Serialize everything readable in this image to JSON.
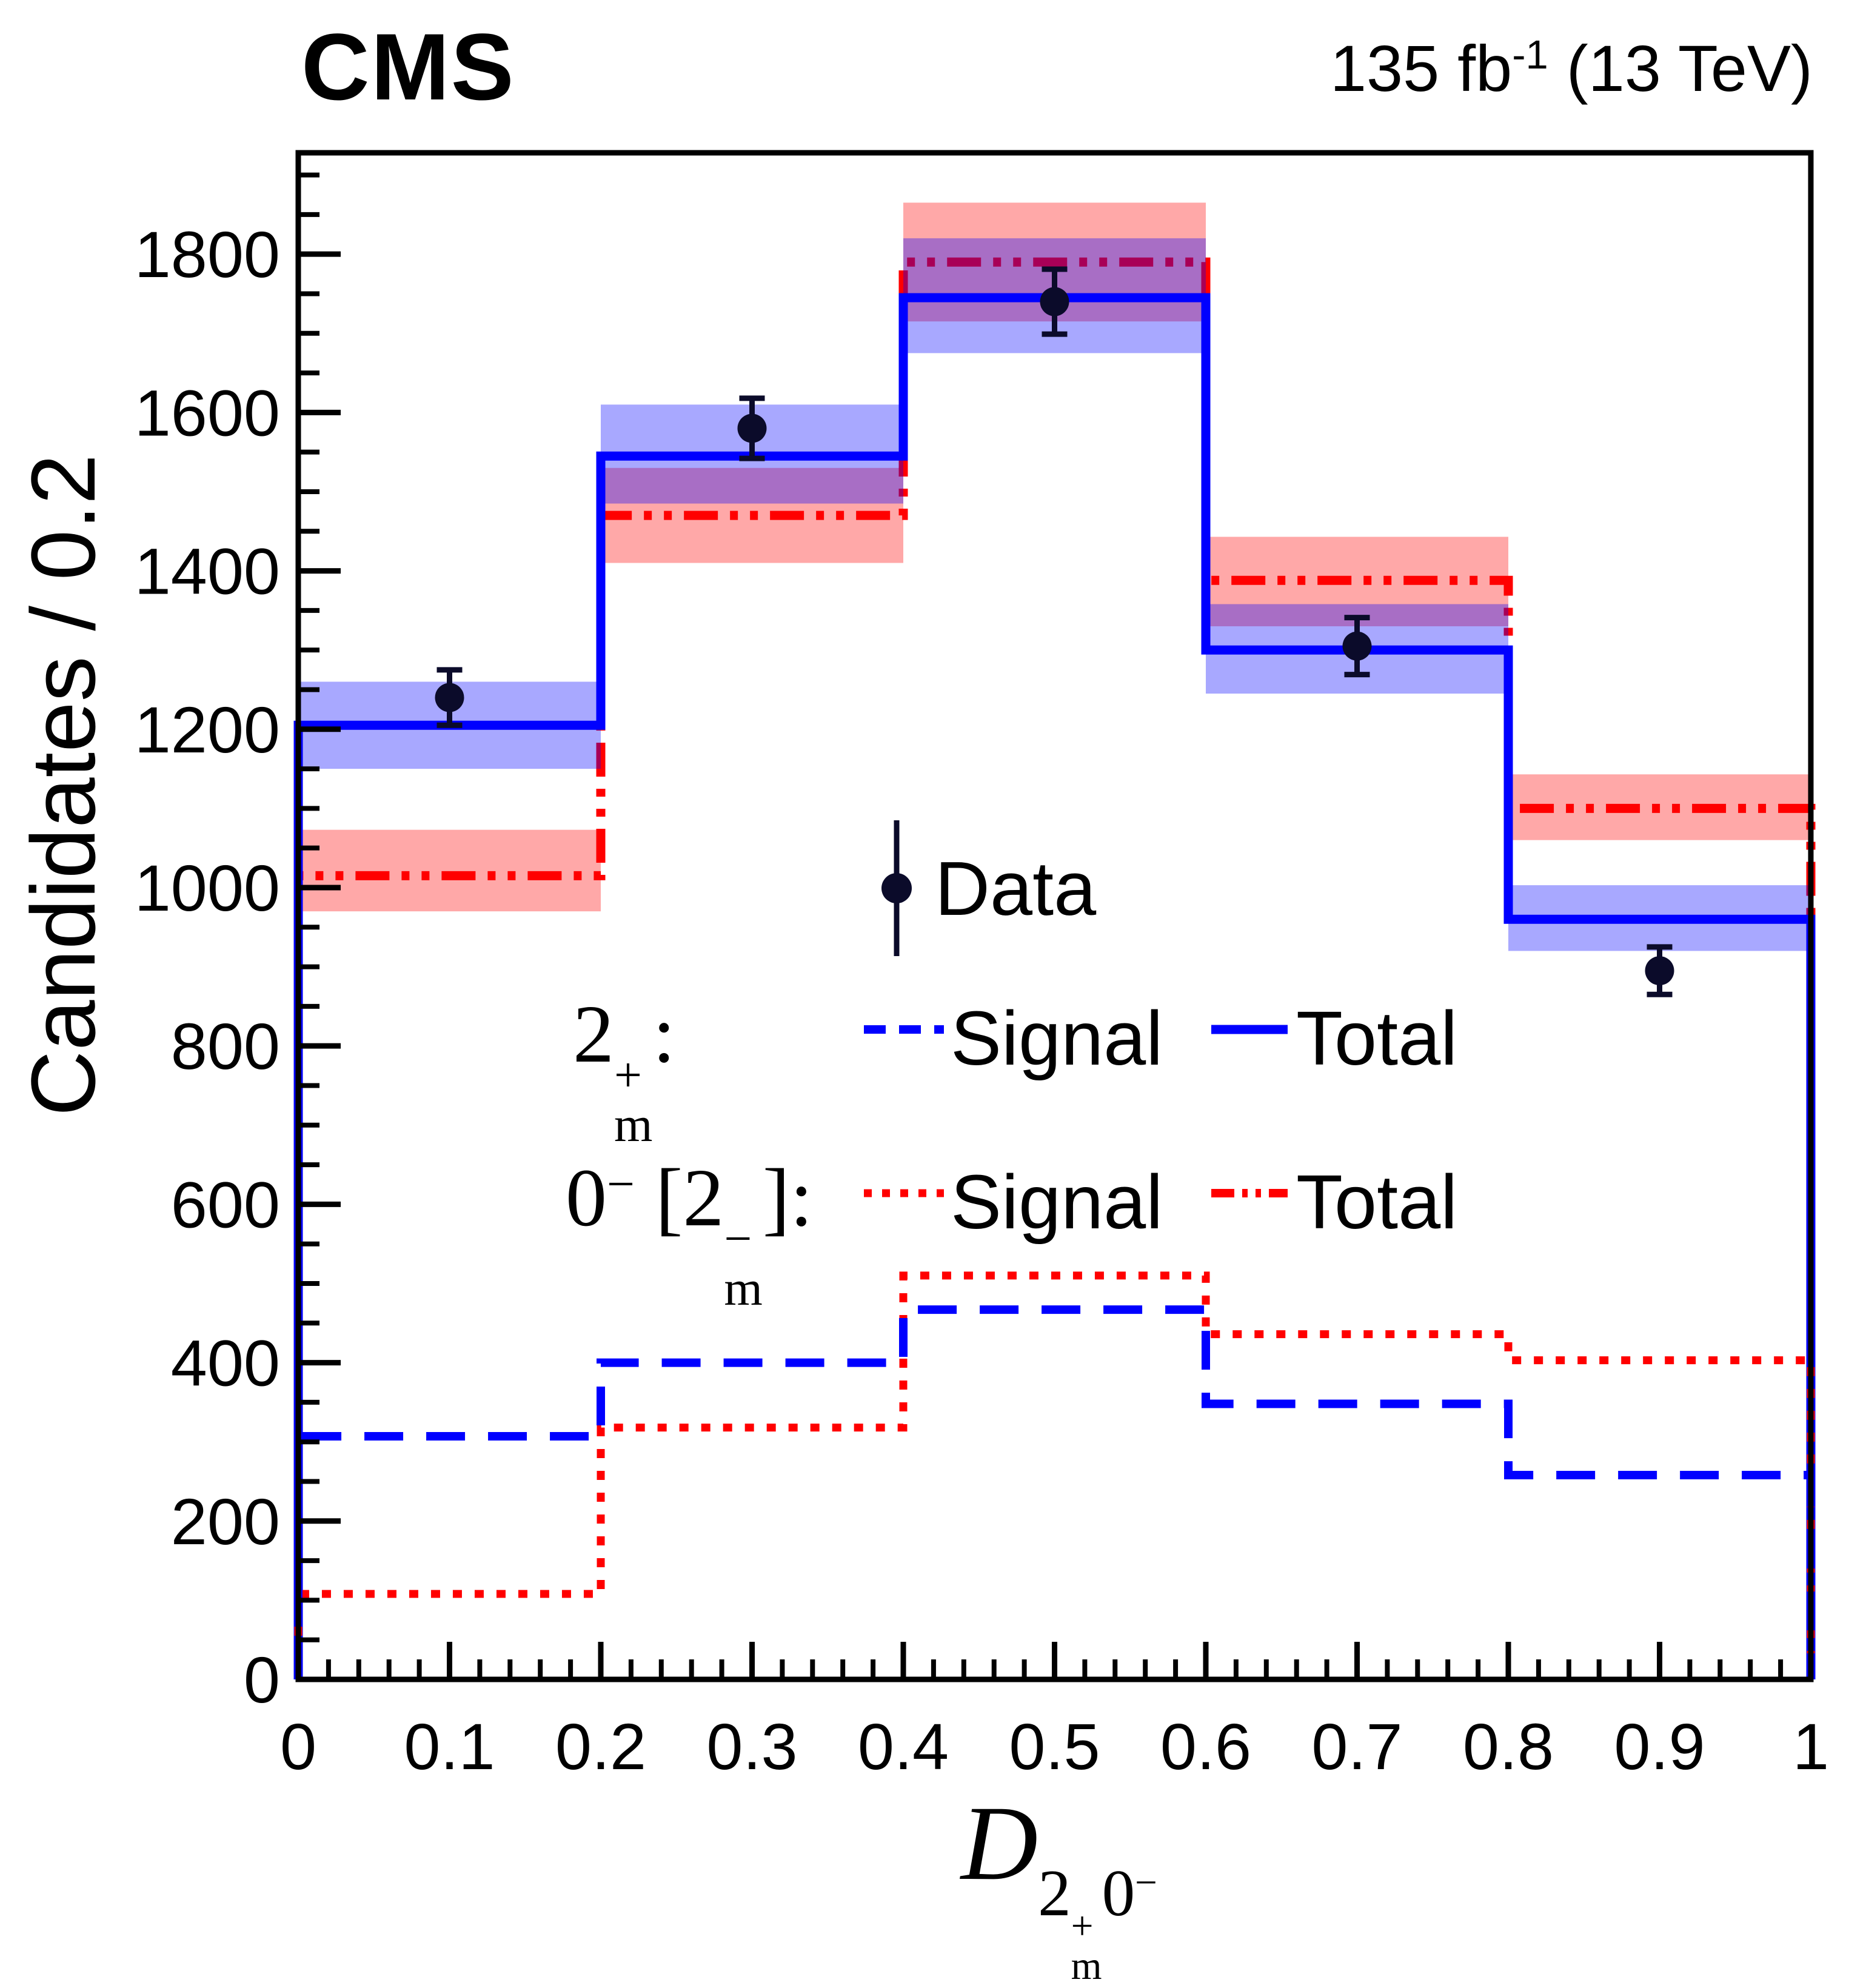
{
  "header": {
    "experiment": "CMS",
    "lumi_value": "135 fb",
    "lumi_sup": "-1",
    "lumi_rest": " (13 TeV)"
  },
  "legend": {
    "data_label": "Data",
    "hyp1": {
      "base": "2",
      "sup": "+",
      "sub": "m",
      "colon": ":",
      "signal_label": "Signal",
      "total_label": "Total"
    },
    "hyp2": {
      "base": "0",
      "sup": "−",
      "open": " [",
      "inner_base": "2",
      "inner_sup": "−",
      "inner_sub": "m",
      "close": "]",
      "colon": ":",
      "signal_label": "Signal",
      "total_label": "Total"
    }
  },
  "x_title": {
    "base": "D",
    "sub1_base": "2",
    "sub1_sup": "+",
    "sub1_sub": "m",
    "sub2_base": "0",
    "sub2_sup": "−"
  },
  "chart_data": {
    "type": "bar",
    "subtype": "step-histogram-comparison",
    "title": "CMS 135 fb-1 (13 TeV)",
    "xlabel": "D_{2m+,0-}",
    "ylabel": "Candidates / 0.2",
    "xlim": [
      0,
      1
    ],
    "ylim": [
      0,
      1928
    ],
    "grid": false,
    "bin_edges": [
      0,
      0.2,
      0.4,
      0.6,
      0.8,
      1.0
    ],
    "x_major_ticks": [
      0,
      0.1,
      0.2,
      0.3,
      0.4,
      0.5,
      0.6,
      0.7,
      0.8,
      0.9,
      1
    ],
    "x_major_labels": [
      "0",
      "0.1",
      "0.2",
      "0.3",
      "0.4",
      "0.5",
      "0.6",
      "0.7",
      "0.8",
      "0.9",
      "1"
    ],
    "x_minor_step": 0.02,
    "y_major_ticks": [
      0,
      200,
      400,
      600,
      800,
      1000,
      1200,
      1400,
      1600,
      1800
    ],
    "y_major_labels": [
      "0",
      "200",
      "400",
      "600",
      "800",
      "1000",
      "1200",
      "1400",
      "1600",
      "1800"
    ],
    "y_minor_step": 50,
    "colors": {
      "blue": "#0000ff",
      "red": "#ff0000",
      "dark": "#0b0b2a",
      "band_alpha": 0.34
    },
    "series": [
      {
        "name": "2m+ Total",
        "legend": "Total",
        "hypothesis": "2m+",
        "type": "step",
        "line": "solid",
        "color": "#0000ff",
        "values": [
          1205,
          1545,
          1745,
          1300,
          960
        ],
        "band_lo": [
          1150,
          1485,
          1675,
          1245,
          920
        ],
        "band_hi": [
          1260,
          1610,
          1820,
          1358,
          1003
        ]
      },
      {
        "name": "0- [2m-] Total",
        "legend": "Total",
        "hypothesis": "0- [2m-]",
        "type": "step",
        "line": "dashdotdot",
        "color": "#ff0000",
        "values": [
          1015,
          1470,
          1790,
          1388,
          1100
        ],
        "band_lo": [
          970,
          1410,
          1715,
          1330,
          1060
        ],
        "band_hi": [
          1073,
          1530,
          1865,
          1443,
          1143
        ]
      },
      {
        "name": "2m+ Signal",
        "legend": "Signal",
        "hypothesis": "2m+",
        "type": "step",
        "line": "dashed",
        "color": "#0000ff",
        "values": [
          307,
          400,
          467,
          348,
          258
        ]
      },
      {
        "name": "0- [2m-] Signal",
        "legend": "Signal",
        "hypothesis": "0- [2m-]",
        "type": "step",
        "line": "dotted",
        "color": "#ff0000",
        "values": [
          108,
          318,
          510,
          436,
          403
        ]
      }
    ],
    "data_points": {
      "name": "Data",
      "marker": "filled-circle",
      "x": [
        0.1,
        0.3,
        0.5,
        0.7,
        0.9
      ],
      "y": [
        1240,
        1580,
        1740,
        1305,
        895
      ],
      "yerr": [
        35,
        38,
        41,
        36,
        30
      ]
    }
  }
}
